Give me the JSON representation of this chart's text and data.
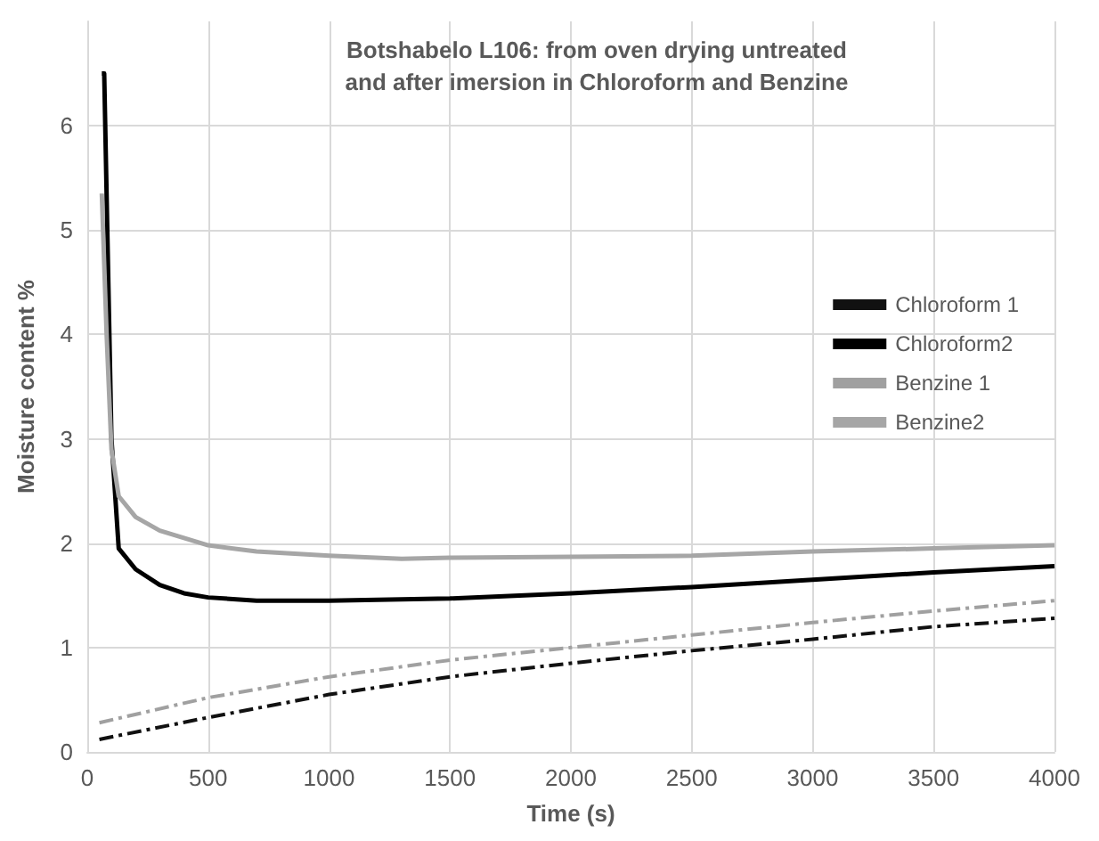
{
  "chart_data": {
    "type": "line",
    "title": "Botshabelo L106: from oven drying untreated\nand after imersion in Chloroform and Benzine",
    "xlabel": "Time (s)",
    "ylabel": "Moisture content %",
    "xlim": [
      0,
      4000
    ],
    "xticks": [
      0,
      500,
      1000,
      1500,
      2000,
      2500,
      3000,
      3500,
      4000
    ],
    "ylim": [
      0,
      7
    ],
    "yticks": [
      0,
      1,
      2,
      3,
      4,
      5,
      6
    ],
    "grid": true,
    "legend": "right",
    "marker": "none",
    "series": [
      {
        "name": "Chloroform 1",
        "color": "#111111",
        "line_style": "dashed",
        "x": [
          50,
          500,
          1000,
          1500,
          2000,
          2500,
          3000,
          3500,
          4000
        ],
        "values": [
          0.12,
          0.33,
          0.55,
          0.72,
          0.85,
          0.97,
          1.08,
          1.2,
          1.28
        ]
      },
      {
        "name": "Chloroform2",
        "color": "#000000",
        "line_style": "solid",
        "x": [
          60,
          70,
          100,
          130,
          200,
          300,
          400,
          500,
          700,
          1000,
          1500,
          2000,
          2500,
          3000,
          3500,
          4000
        ],
        "values": [
          6.5,
          6.5,
          3.0,
          1.95,
          1.75,
          1.6,
          1.52,
          1.48,
          1.45,
          1.45,
          1.47,
          1.52,
          1.58,
          1.65,
          1.72,
          1.78
        ]
      },
      {
        "name": "Benzine 1",
        "color": "#a0a0a0",
        "line_style": "dashed",
        "x": [
          50,
          500,
          1000,
          1500,
          2000,
          2500,
          3000,
          3500,
          4000
        ],
        "values": [
          0.28,
          0.52,
          0.72,
          0.88,
          1.0,
          1.12,
          1.24,
          1.35,
          1.45
        ]
      },
      {
        "name": "Benzine2",
        "color": "#a6a6a6",
        "line_style": "solid",
        "x": [
          60,
          80,
          100,
          130,
          200,
          300,
          500,
          700,
          1000,
          1300,
          1500,
          2000,
          2500,
          3000,
          3500,
          4000
        ],
        "values": [
          5.35,
          4.0,
          2.9,
          2.45,
          2.25,
          2.12,
          1.98,
          1.92,
          1.88,
          1.85,
          1.86,
          1.87,
          1.88,
          1.92,
          1.95,
          1.98
        ]
      }
    ]
  }
}
